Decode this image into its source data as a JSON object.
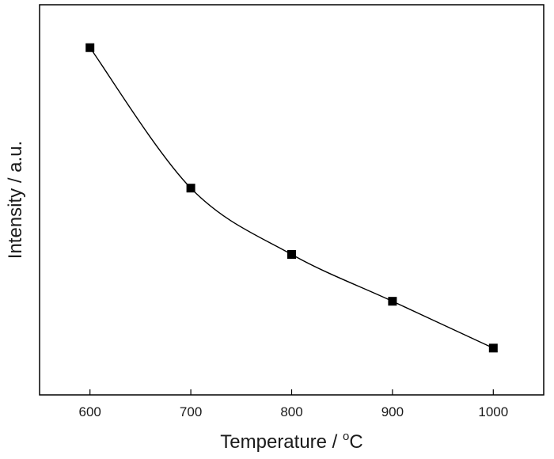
{
  "chart_data": {
    "type": "line",
    "title": "",
    "xlabel": "Temperature / ",
    "xlabel_unit_super": "o",
    "xlabel_unit": "C",
    "ylabel": "Intensity / a.u.",
    "x": [
      600,
      700,
      800,
      900,
      1000
    ],
    "xlim": [
      550,
      1050
    ],
    "xticks": [
      600,
      700,
      800,
      900,
      1000
    ],
    "yticks": [],
    "ylim": [
      0,
      1
    ],
    "series": [
      {
        "values": [
          0.89,
          0.53,
          0.36,
          0.24,
          0.12
        ]
      }
    ],
    "marker": "square",
    "line": "smooth",
    "grid": false,
    "legend": "none",
    "color": "#000000"
  }
}
